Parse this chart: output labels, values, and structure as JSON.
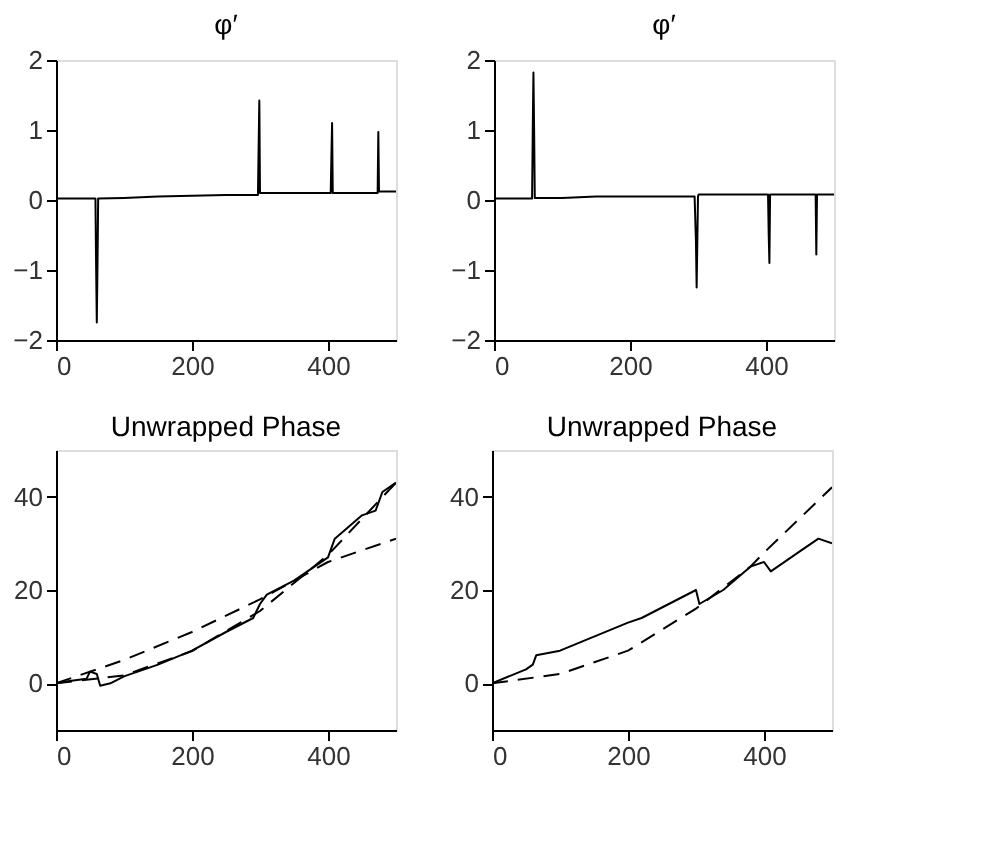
{
  "chart_data": [
    {
      "type": "line",
      "title": "φ′",
      "xlim": [
        0,
        500
      ],
      "ylim": [
        -2,
        2
      ],
      "xticks": [
        0,
        200,
        400
      ],
      "yticks": [
        -2,
        -1,
        0,
        1,
        2
      ],
      "grid": false,
      "marker": "none",
      "series": [
        {
          "color": "#000000",
          "line_style": "solid",
          "x": [
            0,
            58,
            59,
            60,
            61,
            62,
            100,
            150,
            200,
            250,
            297,
            298,
            299,
            300,
            301,
            350,
            404,
            405,
            406,
            407,
            450,
            473,
            474,
            475,
            476,
            500
          ],
          "values": [
            0.02,
            0.02,
            -0.95,
            -1.75,
            -0.95,
            0.02,
            0.03,
            0.05,
            0.06,
            0.07,
            0.07,
            0.77,
            1.42,
            0.1,
            0.1,
            0.1,
            0.1,
            0.62,
            1.1,
            0.1,
            0.1,
            0.1,
            0.97,
            0.12,
            0.12,
            0.12
          ]
        }
      ]
    },
    {
      "type": "line",
      "title": "φ′",
      "xlim": [
        0,
        500
      ],
      "ylim": [
        -2,
        2
      ],
      "xticks": [
        0,
        200,
        400
      ],
      "yticks": [
        -2,
        -1,
        0,
        1,
        2
      ],
      "grid": false,
      "marker": "none",
      "series": [
        {
          "color": "#000000",
          "line_style": "solid",
          "x": [
            0,
            56,
            57,
            58,
            59,
            60,
            100,
            150,
            200,
            250,
            295,
            297,
            298,
            300,
            301,
            350,
            403,
            404,
            405,
            406,
            450,
            473,
            474,
            475,
            500
          ],
          "values": [
            0.02,
            0.02,
            1.0,
            1.82,
            1.0,
            0.03,
            0.03,
            0.05,
            0.05,
            0.05,
            0.05,
            -0.6,
            -1.25,
            0.05,
            0.08,
            0.08,
            0.08,
            -0.5,
            -0.9,
            0.08,
            0.08,
            0.08,
            -0.78,
            0.08,
            0.08
          ]
        }
      ]
    },
    {
      "type": "line",
      "title": "Unwrapped Phase",
      "xlim": [
        0,
        500
      ],
      "ylim": [
        -10,
        50
      ],
      "xticks": [
        0,
        200,
        400
      ],
      "yticks": [
        0,
        20,
        40
      ],
      "grid": false,
      "marker": "none",
      "series": [
        {
          "color": "#000000",
          "line_style": "solid",
          "x": [
            0,
            20,
            45,
            50,
            60,
            65,
            80,
            100,
            150,
            200,
            250,
            290,
            300,
            310,
            350,
            380,
            400,
            410,
            450,
            470,
            480,
            500
          ],
          "values": [
            0,
            0.5,
            1,
            2.5,
            2,
            -0.5,
            0,
            1.5,
            4,
            7,
            11,
            14,
            17,
            19,
            22,
            25,
            27,
            31,
            36,
            37,
            41,
            43
          ]
        },
        {
          "color": "#000000",
          "line_style": "dashed",
          "x": [
            0,
            100,
            200,
            300,
            400,
            500
          ],
          "values": [
            0,
            5,
            11,
            18,
            26,
            31
          ]
        },
        {
          "color": "#000000",
          "line_style": "dashed",
          "x": [
            0,
            100,
            200,
            300,
            400,
            500
          ],
          "values": [
            0,
            1.7,
            6.9,
            15.5,
            27.5,
            43
          ]
        }
      ]
    },
    {
      "type": "line",
      "title": "Unwrapped Phase",
      "xlim": [
        0,
        500
      ],
      "ylim": [
        -10,
        50
      ],
      "xticks": [
        0,
        200,
        400
      ],
      "yticks": [
        0,
        20,
        40
      ],
      "grid": false,
      "marker": "none",
      "series": [
        {
          "color": "#000000",
          "line_style": "solid",
          "x": [
            0,
            50,
            60,
            65,
            100,
            150,
            200,
            220,
            260,
            300,
            305,
            340,
            380,
            400,
            410,
            450,
            480,
            500
          ],
          "values": [
            0,
            3,
            4,
            6,
            7,
            10,
            13,
            14,
            17,
            20,
            17,
            20,
            25,
            26,
            24,
            28,
            31,
            30
          ]
        },
        {
          "color": "#000000",
          "line_style": "dashed",
          "x": [
            0,
            100,
            200,
            300,
            380,
            400,
            450,
            500
          ],
          "values": [
            0,
            2,
            7,
            16,
            25,
            28,
            35,
            42
          ]
        }
      ]
    }
  ]
}
